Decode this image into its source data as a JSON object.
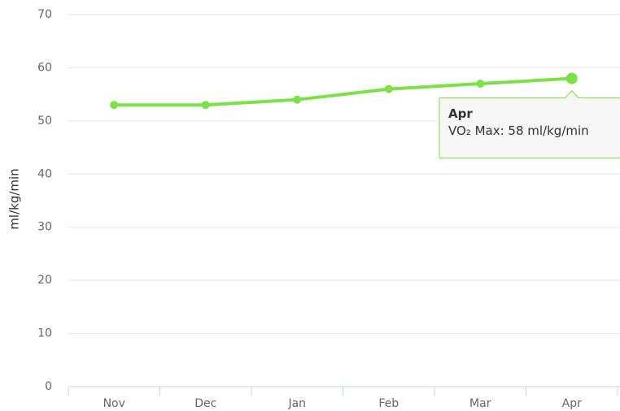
{
  "chart_data": {
    "type": "line",
    "y_axis_label": "ml/kg/min",
    "categories": [
      "Nov",
      "Dec",
      "Jan",
      "Feb",
      "Mar",
      "Apr"
    ],
    "series": [
      {
        "name": "VO₂ Max",
        "color": "#7ce048",
        "values": [
          53,
          53,
          54,
          56,
          57,
          58
        ]
      }
    ],
    "ylim": [
      0,
      70
    ],
    "yticks": [
      0,
      10,
      20,
      30,
      40,
      50,
      60,
      70
    ],
    "grid": true,
    "tooltip": {
      "title": "Apr",
      "text": "VO₂ Max: 58 ml/kg/min"
    }
  }
}
